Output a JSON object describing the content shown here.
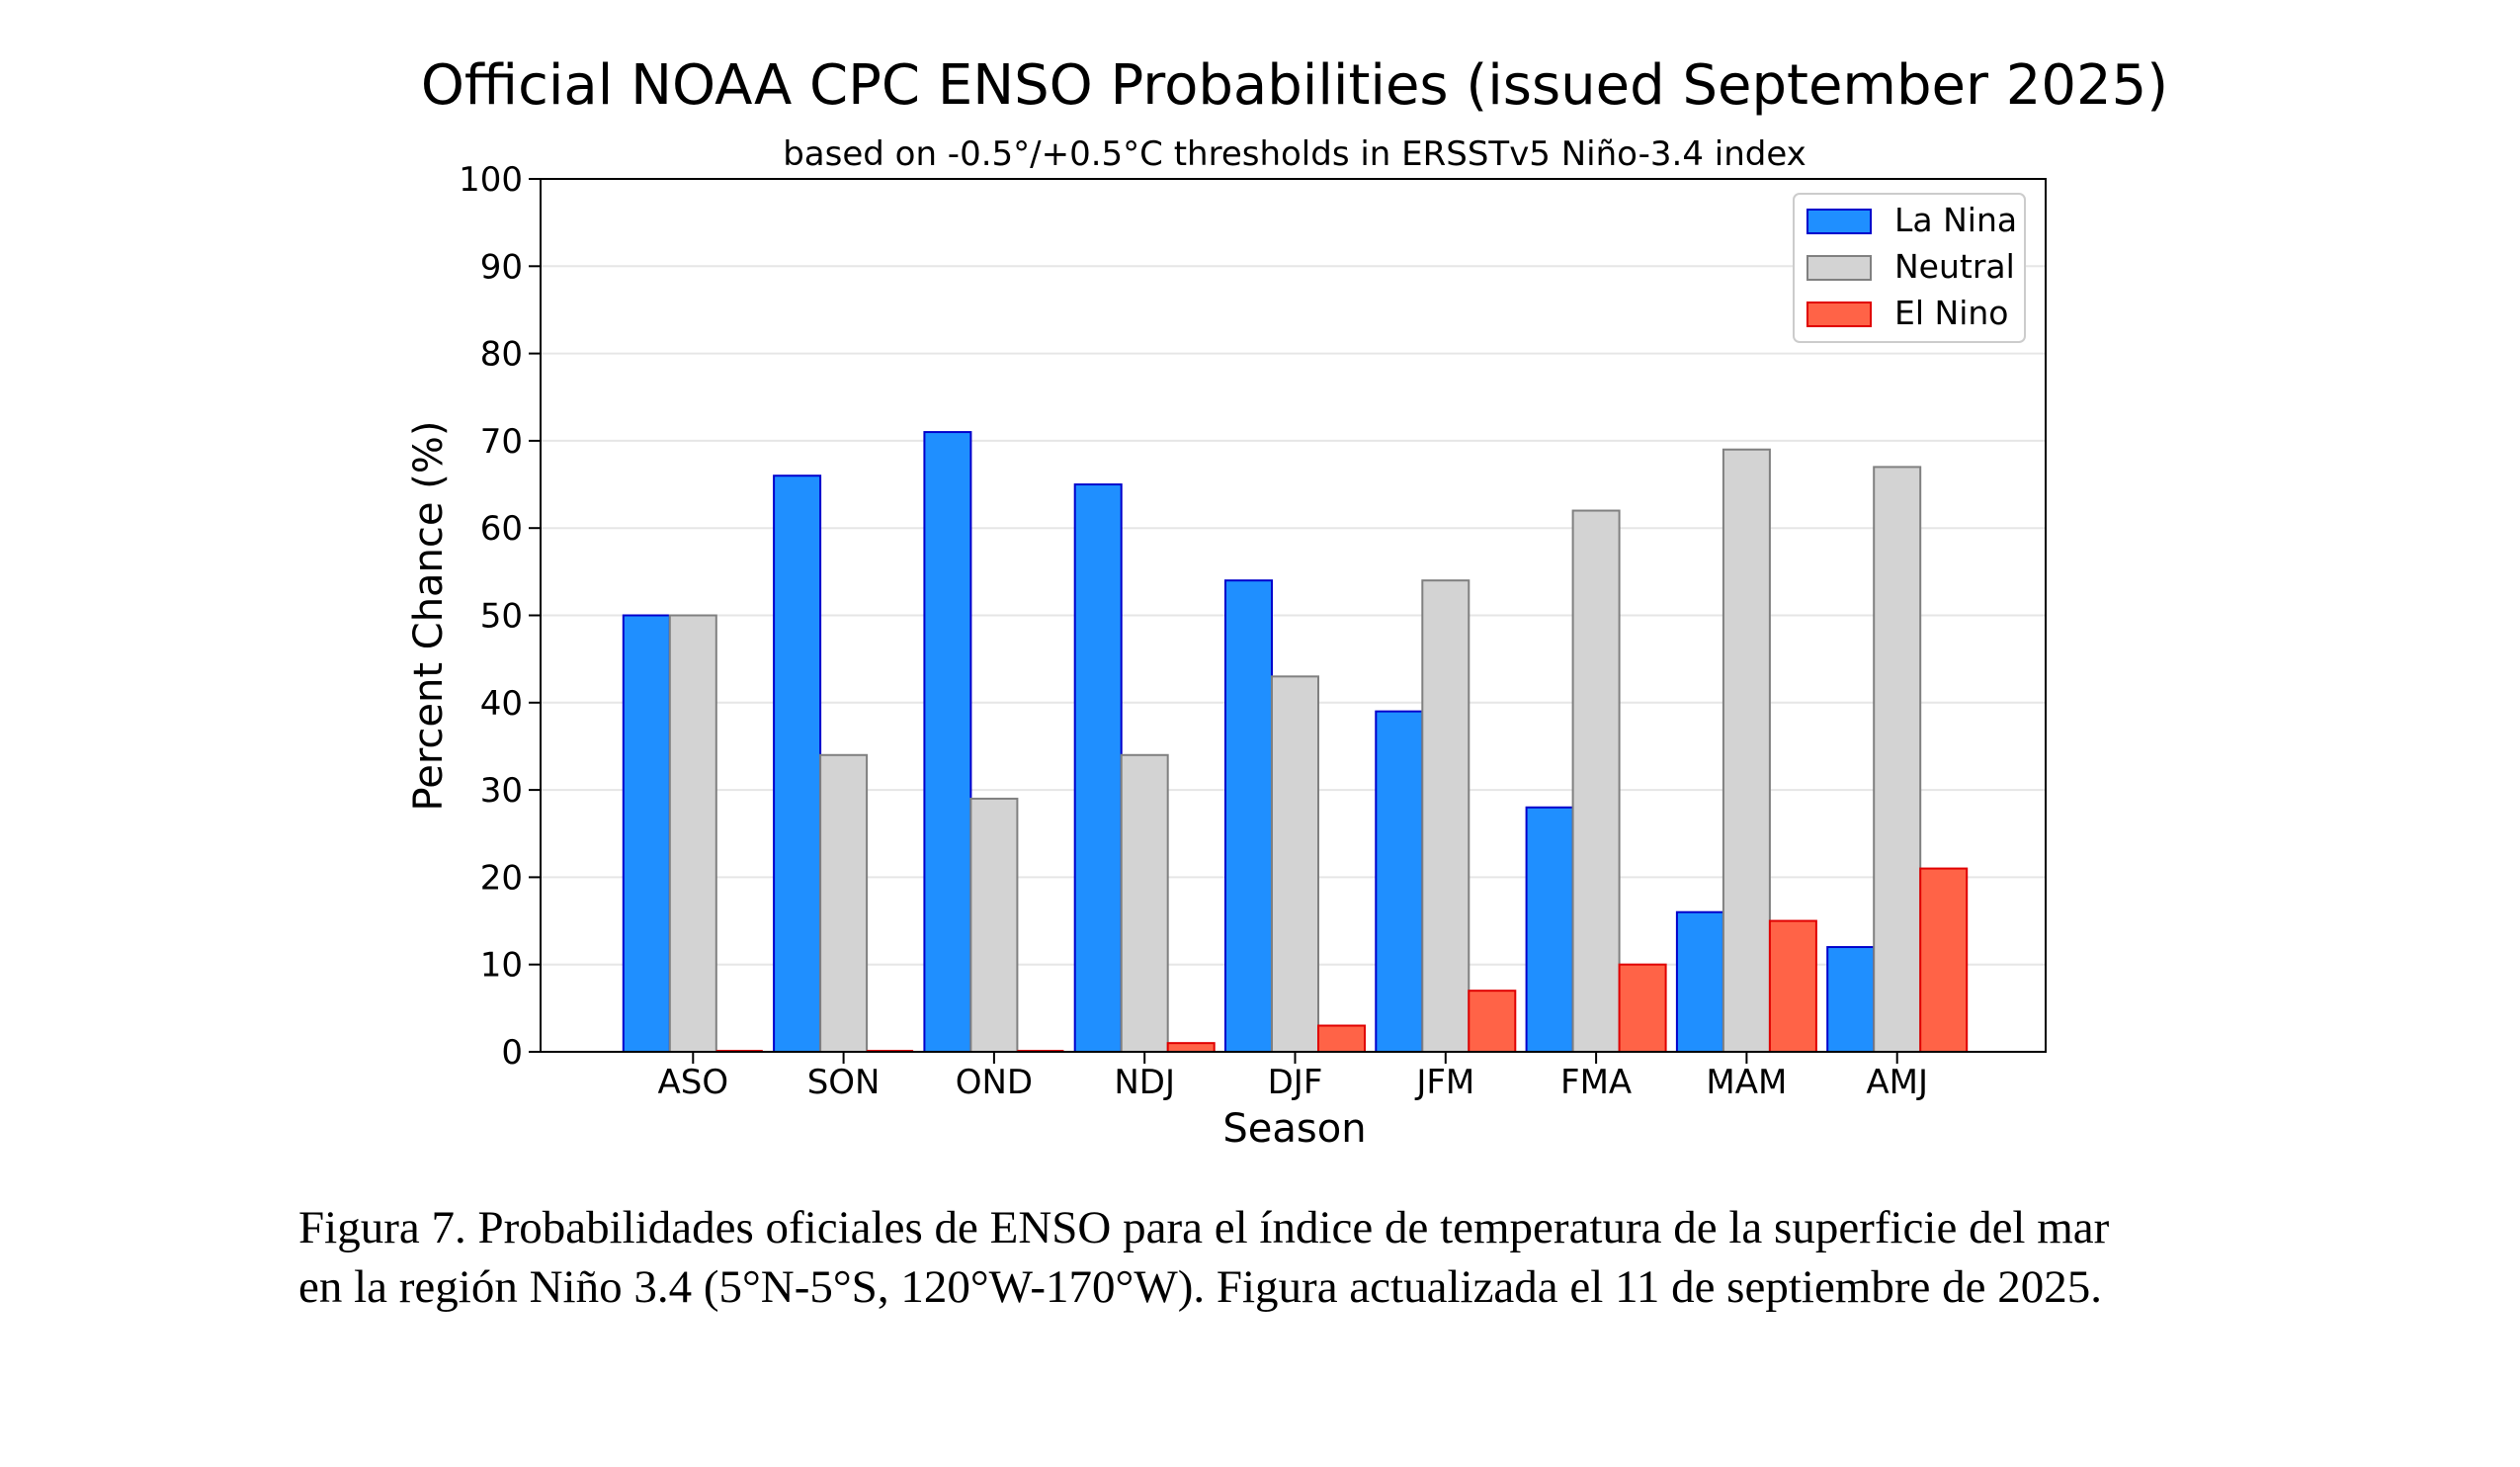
{
  "chart_data": {
    "type": "bar",
    "title": "Official NOAA CPC ENSO Probabilities (issued September 2025)",
    "subtitle": "based on -0.5°/+0.5°C thresholds in ERSSTv5 Niño-3.4 index",
    "xlabel": "Season",
    "ylabel": "Percent Chance (%)",
    "ylim": [
      0,
      100
    ],
    "yticks": [
      0,
      10,
      20,
      30,
      40,
      50,
      60,
      70,
      80,
      90,
      100
    ],
    "grid": true,
    "legend_position": "top-right",
    "categories": [
      "ASO",
      "SON",
      "OND",
      "NDJ",
      "DJF",
      "JFM",
      "FMA",
      "MAM",
      "AMJ"
    ],
    "series": [
      {
        "name": "La Nina",
        "color": "#1f8fff",
        "edge": "#0000cc",
        "values": [
          50,
          66,
          71,
          65,
          54,
          39,
          28,
          16,
          12
        ]
      },
      {
        "name": "Neutral",
        "color": "#d3d3d3",
        "edge": "#808080",
        "values": [
          50,
          34,
          29,
          34,
          43,
          54,
          62,
          69,
          67
        ]
      },
      {
        "name": "El Nino",
        "color": "#ff6347",
        "edge": "#e00000",
        "values": [
          0,
          0,
          0,
          1,
          3,
          7,
          10,
          15,
          21
        ]
      }
    ]
  },
  "caption": {
    "line1": "Figura 7. Probabilidades oficiales de ENSO para el índice de temperatura de la superficie del mar",
    "line2": "en la región Niño 3.4 (5°N-5°S, 120°W-170°W). Figura actualizada el 11 de septiembre de 2025."
  }
}
